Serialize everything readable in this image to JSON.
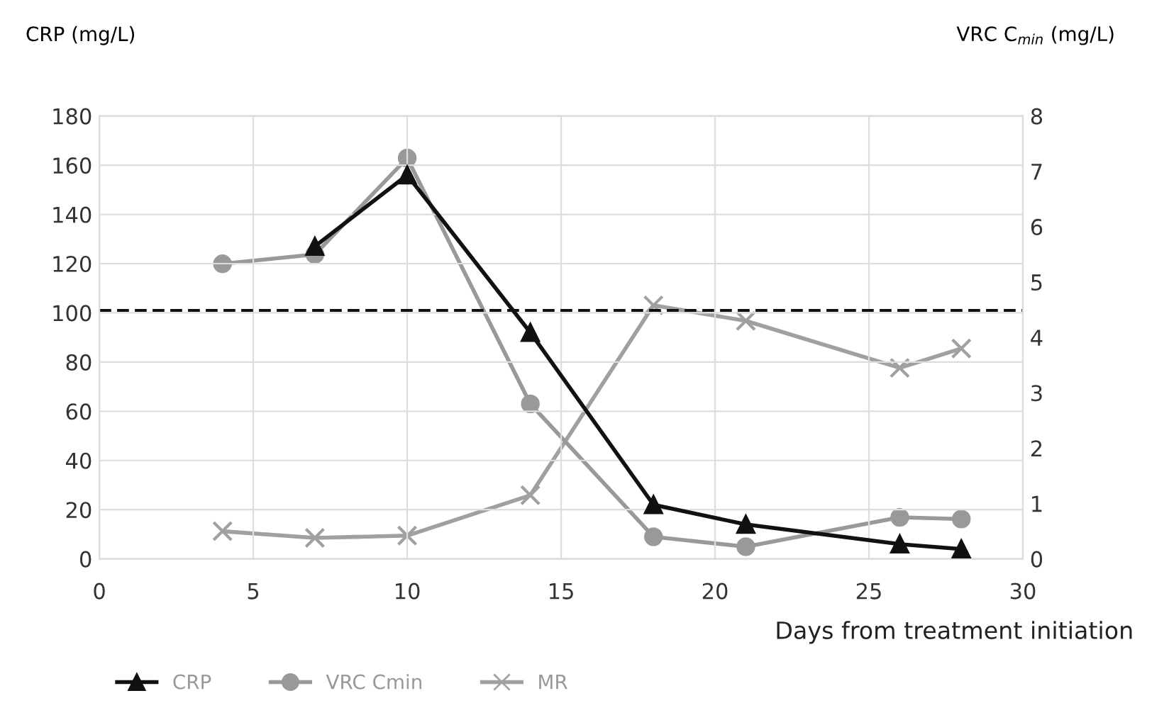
{
  "chart_data": {
    "type": "line",
    "ylabel": "CRP (mg/L)",
    "y2label": "VRC C$_{min}$ (mg/L)",
    "xlabel": "Days from treatment initiation",
    "xlim": [
      0,
      30
    ],
    "xticks": [
      0,
      5,
      10,
      15,
      20,
      25,
      30
    ],
    "ylim": [
      0,
      180
    ],
    "yticks": [
      0,
      20,
      40,
      60,
      80,
      100,
      120,
      140,
      160,
      180
    ],
    "y2lim": [
      0,
      8
    ],
    "y2ticks": [
      0,
      1,
      2,
      3,
      4,
      5,
      6,
      7,
      8
    ],
    "grid": true,
    "legend": "bottom left",
    "ref_lines": [
      {
        "axis": "y",
        "value": 101,
        "color": "#111111",
        "line_style": "dashed"
      }
    ],
    "series": [
      {
        "name": "CRP",
        "color": "#111111",
        "marker": "triangle",
        "x": [
          7,
          10,
          14,
          18,
          21,
          26,
          28
        ],
        "values": [
          127,
          156,
          92,
          22,
          14,
          6,
          4
        ]
      },
      {
        "name": "VRC Cmin",
        "color": "#999999",
        "marker": "circle",
        "axis": "y2",
        "x": [
          4,
          7,
          10,
          14,
          18,
          21,
          26,
          28
        ],
        "values": [
          5.33,
          5.5,
          7.24,
          2.8,
          0.4,
          0.22,
          0.75,
          0.72
        ]
      },
      {
        "name": "MR",
        "color": "#a0a0a0",
        "marker": "cross",
        "axis": "y2",
        "x": [
          4,
          7,
          10,
          14,
          18,
          21,
          26,
          28
        ],
        "values": [
          0.5,
          0.38,
          0.42,
          1.15,
          4.58,
          4.3,
          3.45,
          3.8
        ]
      }
    ]
  }
}
